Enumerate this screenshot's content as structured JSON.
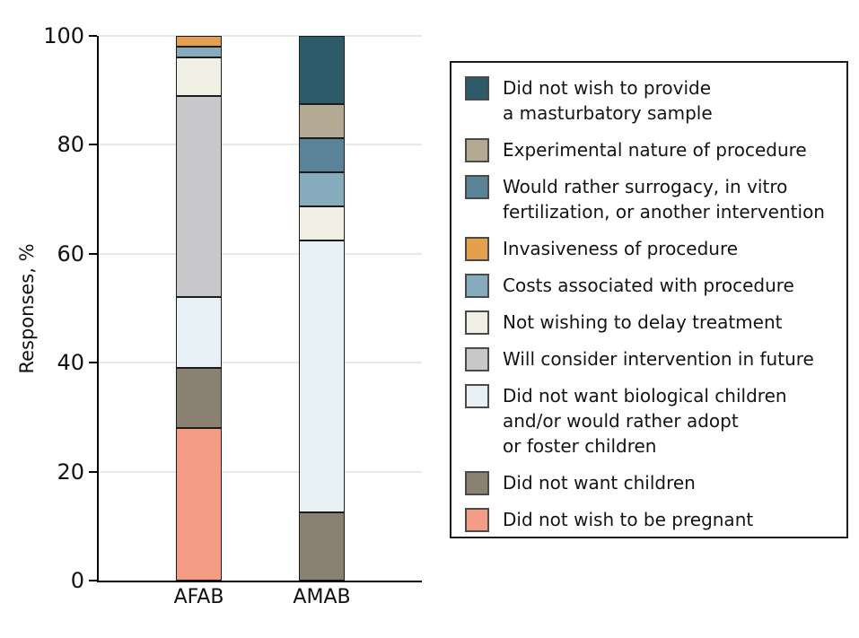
{
  "chart_data": {
    "type": "bar",
    "subtype": "stacked-vertical",
    "title": "",
    "xlabel": "",
    "ylabel": "Responses, %",
    "ylim": [
      0,
      100
    ],
    "yticks": [
      0,
      20,
      40,
      60,
      80,
      100
    ],
    "grid": "horizontal-light",
    "legend_position": "right",
    "categories": [
      "AFAB",
      "AMAB"
    ],
    "series_note": "series listed in legend order (top to bottom); bars stack bottom-up in reverse of this order; values are percent of responses",
    "series": [
      {
        "name": "Did not wish to provide a masturbatory sample",
        "lines": [
          "Did not wish to provide",
          "a masturbatory sample"
        ],
        "color": "#2E5B69",
        "values": [
          0,
          12.5
        ]
      },
      {
        "name": "Experimental nature of procedure",
        "lines": [
          "Experimental nature of procedure"
        ],
        "color": "#B4A992",
        "values": [
          0,
          6.25
        ]
      },
      {
        "name": "Would rather surrogacy, in vitro fertilization, or another intervention",
        "lines": [
          "Would rather surrogacy, in vitro",
          "fertilization, or another intervention"
        ],
        "color": "#5B8397",
        "values": [
          0,
          6.25
        ]
      },
      {
        "name": "Invasiveness of procedure",
        "lines": [
          "Invasiveness of procedure"
        ],
        "color": "#E5A04E",
        "values": [
          2,
          0
        ]
      },
      {
        "name": "Costs associated with procedure",
        "lines": [
          "Costs associated with procedure"
        ],
        "color": "#85ABBD",
        "values": [
          2,
          6.25
        ]
      },
      {
        "name": "Not wishing to delay treatment",
        "lines": [
          "Not wishing to delay treatment"
        ],
        "color": "#F0EFE3",
        "values": [
          7,
          6.25
        ]
      },
      {
        "name": "Will consider intervention in future",
        "lines": [
          "Will consider intervention in future"
        ],
        "color": "#C8C8CB",
        "values": [
          37,
          0
        ]
      },
      {
        "name": "Did not want biological children and/or would rather adopt or foster children",
        "lines": [
          "Did not want biological children",
          "and/or would rather adopt",
          "or foster children"
        ],
        "color": "#E7F0F4",
        "values": [
          13,
          50
        ]
      },
      {
        "name": "Did not want children",
        "lines": [
          "Did not want children"
        ],
        "color": "#8A8172",
        "values": [
          11,
          12.5
        ]
      },
      {
        "name": "Did not wish to be pregnant",
        "lines": [
          "Did not wish to be pregnant"
        ],
        "color": "#F39C86",
        "values": [
          28,
          0
        ]
      }
    ],
    "colors": {
      "axis": "#000000",
      "gridline": "#e8e8e8",
      "segment_border": "#1c1c1c",
      "text": "#1a1a1a"
    }
  }
}
